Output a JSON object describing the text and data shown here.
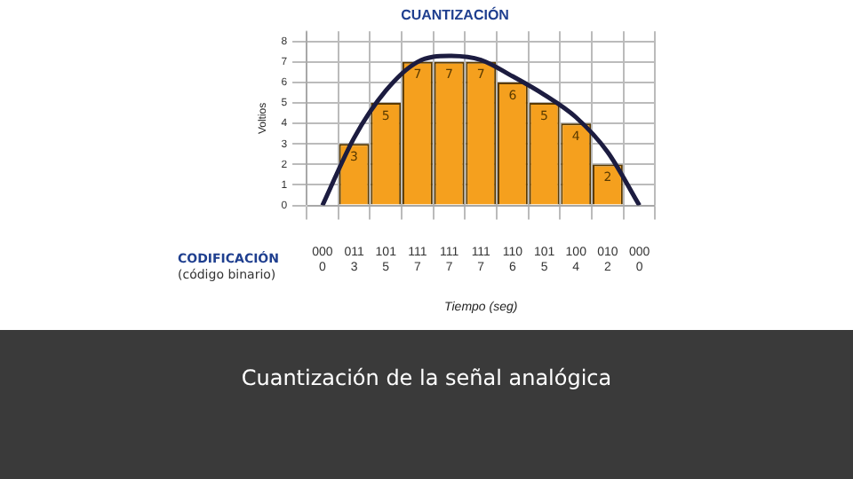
{
  "chart_data": {
    "type": "bar",
    "title": "CUANTIZACIÓN",
    "xlabel": "Tiempo (seg)",
    "ylabel": "Voltios",
    "categories": [
      "000",
      "011",
      "101",
      "111",
      "111",
      "111",
      "110",
      "101",
      "100",
      "010",
      "000"
    ],
    "series": [
      {
        "color": "#f5a01e",
        "values": [
          0,
          3,
          5,
          7,
          7,
          7,
          6,
          5,
          4,
          2,
          0
        ],
        "value_labels": [
          null,
          "3",
          "5",
          "7",
          "7",
          "7",
          "6",
          "5",
          "4",
          "2",
          null
        ]
      },
      {
        "type": "line",
        "color": "#1c1c40",
        "values": [
          0,
          3.3,
          5.6,
          7,
          7.3,
          7.1,
          6.3,
          5.4,
          4.3,
          2.6,
          0
        ]
      }
    ],
    "ylim": [
      0,
      8.5
    ],
    "yticks": [
      0,
      1,
      2,
      3,
      4,
      5,
      6,
      7,
      8
    ],
    "grid": true,
    "marker": "none",
    "annotations": [
      "CODIFICACIÓN",
      "(código binario)",
      "Cuantización de la señal analógica",
      "0",
      "3",
      "5",
      "7",
      "7",
      "7",
      "6",
      "5",
      "4",
      "2",
      "0"
    ]
  }
}
